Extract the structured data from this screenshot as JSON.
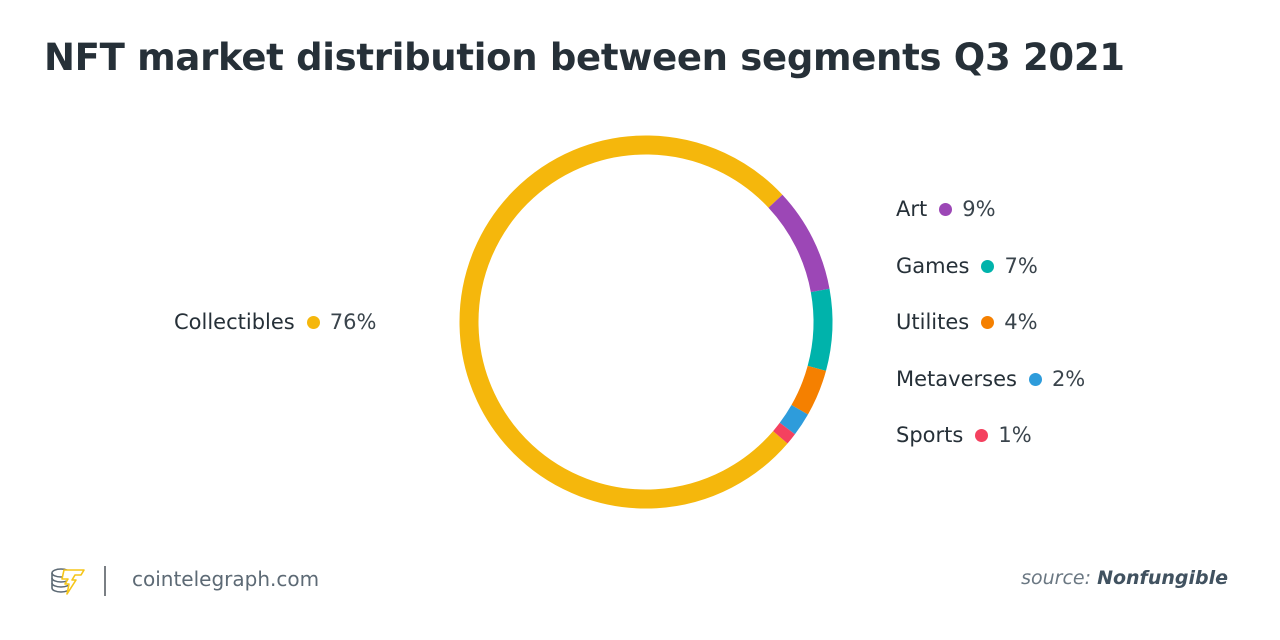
{
  "title": "NFT market distribution between segments Q3 2021",
  "chart_data": {
    "type": "pie",
    "subtype": "donut",
    "title": "NFT market distribution between segments Q3 2021",
    "categories": [
      "Collectibles",
      "Art",
      "Games",
      "Utilites",
      "Metaverses",
      "Sports"
    ],
    "values": [
      76,
      9,
      7,
      4,
      2,
      1
    ],
    "unit": "%",
    "colors": [
      "#f5b70c",
      "#9c47b6",
      "#00b3ab",
      "#f58000",
      "#2e9cdb",
      "#f4415f"
    ],
    "legend_position": "labels beside ring"
  },
  "labels": {
    "collectibles": {
      "name": "Collectibles",
      "pct": "76%"
    },
    "art": {
      "name": "Art",
      "pct": "9%"
    },
    "games": {
      "name": "Games",
      "pct": "7%"
    },
    "utilites": {
      "name": "Utilites",
      "pct": "4%"
    },
    "metaverses": {
      "name": "Metaverses",
      "pct": "2%"
    },
    "sports": {
      "name": "Sports",
      "pct": "1%"
    }
  },
  "footer": {
    "site": "cointelegraph.com",
    "source_prefix": "source: ",
    "source_name": "Nonfungible",
    "logo_icon": "cointelegraph-logo-icon"
  }
}
